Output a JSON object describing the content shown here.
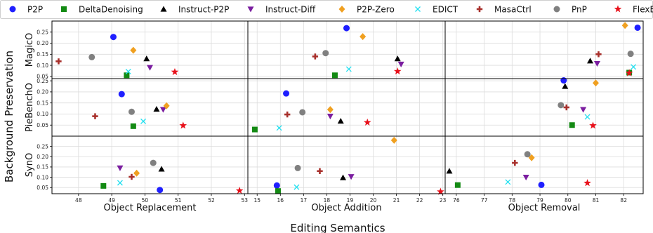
{
  "chart_data": {
    "type": "scatter",
    "supxlabel": "Editing Semantics",
    "supylabel": "Background Preservation",
    "methods": [
      {
        "name": "P2P",
        "color": "#1f1fff",
        "marker": "circle"
      },
      {
        "name": "DeltaDenoising",
        "color": "#138a13",
        "marker": "square"
      },
      {
        "name": "Instruct-P2P",
        "color": "#000000",
        "marker": "triangle-up"
      },
      {
        "name": "Instruct-Diff",
        "color": "#7b1ea0",
        "marker": "triangle-down"
      },
      {
        "name": "P2P-Zero",
        "color": "#f0a020",
        "marker": "diamond"
      },
      {
        "name": "EDICT",
        "color": "#22e0f0",
        "marker": "x"
      },
      {
        "name": "MasaCtrl",
        "color": "#a8302c",
        "marker": "plus"
      },
      {
        "name": "PnP",
        "color": "#808080",
        "marker": "circle"
      },
      {
        "name": "FlexEdit",
        "color": "#e8101a",
        "marker": "star"
      }
    ],
    "rows": [
      {
        "label": "MagicO",
        "ylim": [
          0.04,
          0.3
        ],
        "yticks": [
          "0.05",
          "0.10",
          "0.15",
          "0.20",
          "0.25"
        ]
      },
      {
        "label": "PieBenchO",
        "ylim": [
          0.0,
          0.26
        ],
        "yticks": [
          "0.05",
          "0.10",
          "0.15",
          "0.20",
          "0.25"
        ]
      },
      {
        "label": "SynO",
        "ylim": [
          0.02,
          0.3
        ],
        "yticks": [
          "0.05",
          "0.10",
          "0.15",
          "0.20",
          "0.25"
        ]
      }
    ],
    "columns": [
      {
        "xlabel": "Object Replacement",
        "xlim": [
          47.2,
          53.1
        ],
        "xticks": [
          "48",
          "49",
          "50",
          "51",
          "52",
          "53"
        ]
      },
      {
        "xlabel": "Object Addition",
        "xlim": [
          14.6,
          23.1
        ],
        "xticks": [
          "15",
          "16",
          "17",
          "18",
          "19",
          "20",
          "21",
          "22",
          "23"
        ]
      },
      {
        "xlabel": "Object Removal",
        "xlim": [
          75.6,
          82.7
        ],
        "xticks": [
          "76",
          "77",
          "78",
          "79",
          "80",
          "81",
          "82"
        ]
      }
    ],
    "panels": [
      {
        "row": 0,
        "col": 0,
        "points": {
          "P2P": [
            49.05,
            0.228
          ],
          "DeltaDenoising": [
            49.45,
            0.055
          ],
          "Instruct-P2P": [
            50.05,
            0.13
          ],
          "Instruct-Diff": [
            50.15,
            0.09
          ],
          "P2P-Zero": [
            49.65,
            0.168
          ],
          "EDICT": [
            49.5,
            0.072
          ],
          "MasaCtrl": [
            47.4,
            0.118
          ],
          "PnP": [
            48.4,
            0.137
          ],
          "FlexEdit": [
            50.9,
            0.07
          ]
        }
      },
      {
        "row": 0,
        "col": 1,
        "points": {
          "P2P": [
            18.85,
            0.268
          ],
          "DeltaDenoising": [
            18.35,
            0.055
          ],
          "Instruct-P2P": [
            21.05,
            0.13
          ],
          "Instruct-Diff": [
            21.2,
            0.105
          ],
          "P2P-Zero": [
            19.55,
            0.23
          ],
          "EDICT": [
            18.95,
            0.083
          ],
          "MasaCtrl": [
            17.5,
            0.14
          ],
          "PnP": [
            17.95,
            0.155
          ],
          "FlexEdit": [
            21.05,
            0.073
          ]
        }
      },
      {
        "row": 0,
        "col": 2,
        "points": {
          "P2P": [
            82.5,
            0.27
          ],
          "DeltaDenoising": [
            82.2,
            0.067
          ],
          "Instruct-P2P": [
            80.8,
            0.12
          ],
          "Instruct-Diff": [
            81.05,
            0.108
          ],
          "P2P-Zero": [
            82.05,
            0.28
          ],
          "EDICT": [
            82.35,
            0.093
          ],
          "MasaCtrl": [
            81.1,
            0.15
          ],
          "PnP": [
            82.25,
            0.152
          ],
          "FlexEdit": [
            82.2,
            0.065
          ]
        }
      },
      {
        "row": 1,
        "col": 0,
        "points": {
          "P2P": [
            49.3,
            0.19
          ],
          "DeltaDenoising": [
            49.65,
            0.045
          ],
          "Instruct-P2P": [
            50.35,
            0.122
          ],
          "Instruct-Diff": [
            50.55,
            0.12
          ],
          "P2P-Zero": [
            50.65,
            0.137
          ],
          "EDICT": [
            49.95,
            0.067
          ],
          "MasaCtrl": [
            48.5,
            0.09
          ],
          "PnP": [
            49.6,
            0.11
          ],
          "FlexEdit": [
            51.15,
            0.048
          ]
        }
      },
      {
        "row": 1,
        "col": 1,
        "points": {
          "P2P": [
            16.25,
            0.193
          ],
          "DeltaDenoising": [
            14.9,
            0.03
          ],
          "Instruct-P2P": [
            18.6,
            0.068
          ],
          "Instruct-Diff": [
            18.15,
            0.09
          ],
          "P2P-Zero": [
            18.15,
            0.12
          ],
          "EDICT": [
            15.95,
            0.037
          ],
          "MasaCtrl": [
            16.3,
            0.098
          ],
          "PnP": [
            16.95,
            0.108
          ],
          "FlexEdit": [
            19.75,
            0.062
          ]
        }
      },
      {
        "row": 1,
        "col": 2,
        "points": {
          "P2P": [
            79.85,
            0.252
          ],
          "DeltaDenoising": [
            80.15,
            0.05
          ],
          "Instruct-P2P": [
            79.9,
            0.225
          ],
          "Instruct-Diff": [
            80.55,
            0.12
          ],
          "P2P-Zero": [
            81.0,
            0.24
          ],
          "EDICT": [
            80.7,
            0.087
          ],
          "MasaCtrl": [
            79.95,
            0.13
          ],
          "PnP": [
            79.75,
            0.14
          ],
          "FlexEdit": [
            80.9,
            0.048
          ]
        }
      },
      {
        "row": 2,
        "col": 0,
        "points": {
          "P2P": [
            50.45,
            0.038
          ],
          "DeltaDenoising": [
            48.75,
            0.058
          ],
          "Instruct-P2P": [
            50.5,
            0.14
          ],
          "Instruct-Diff": [
            49.25,
            0.145
          ],
          "P2P-Zero": [
            49.75,
            0.12
          ],
          "EDICT": [
            49.25,
            0.073
          ],
          "MasaCtrl": [
            49.6,
            0.102
          ],
          "PnP": [
            50.25,
            0.17
          ],
          "FlexEdit": [
            52.85,
            0.035
          ]
        }
      },
      {
        "row": 2,
        "col": 1,
        "points": {
          "P2P": [
            15.85,
            0.06
          ],
          "DeltaDenoising": [
            15.9,
            0.033
          ],
          "Instruct-P2P": [
            18.7,
            0.098
          ],
          "Instruct-Diff": [
            19.05,
            0.103
          ],
          "P2P-Zero": [
            20.9,
            0.28
          ],
          "EDICT": [
            16.7,
            0.052
          ],
          "MasaCtrl": [
            17.7,
            0.13
          ],
          "PnP": [
            16.75,
            0.145
          ],
          "FlexEdit": [
            22.9,
            0.03
          ]
        }
      },
      {
        "row": 2,
        "col": 2,
        "points": {
          "P2P": [
            79.05,
            0.063
          ],
          "DeltaDenoising": [
            76.05,
            0.062
          ],
          "Instruct-P2P": [
            75.75,
            0.13
          ],
          "Instruct-Diff": [
            78.5,
            0.1
          ],
          "P2P-Zero": [
            78.7,
            0.195
          ],
          "EDICT": [
            77.85,
            0.077
          ],
          "MasaCtrl": [
            78.1,
            0.17
          ],
          "PnP": [
            78.55,
            0.212
          ],
          "FlexEdit": [
            80.7,
            0.072
          ]
        }
      }
    ]
  }
}
